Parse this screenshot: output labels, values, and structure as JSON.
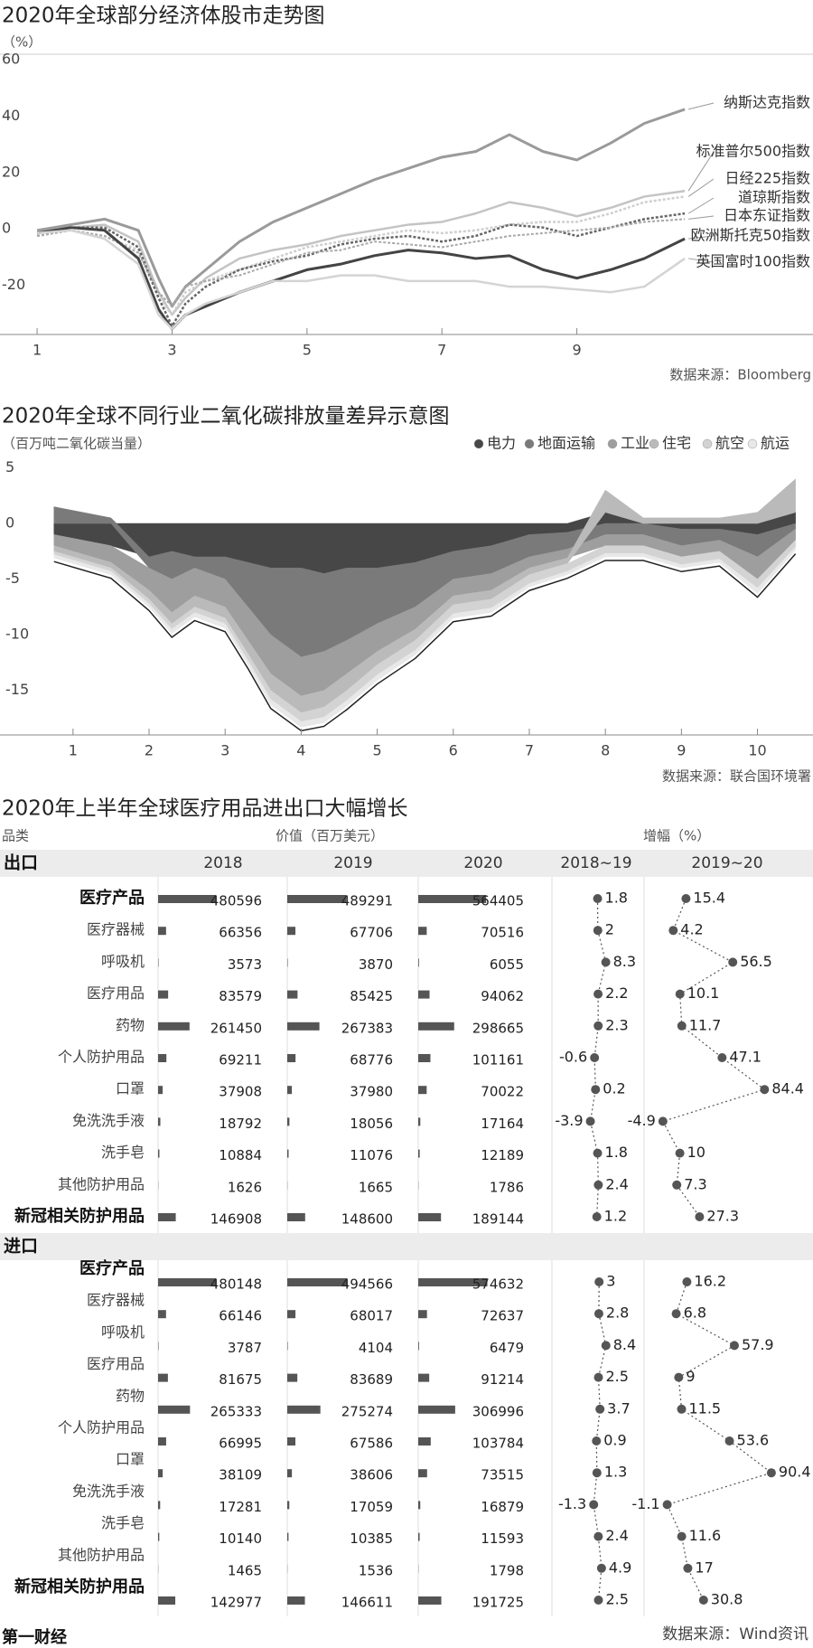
{
  "chart_data": [
    {
      "type": "line",
      "title": "2020年全球部分经济体股市走势图",
      "unit": "（%）",
      "source": "数据来源：Bloomberg",
      "x": [
        1,
        1.5,
        2,
        2.5,
        2.8,
        3,
        3.2,
        3.5,
        4,
        4.5,
        5,
        5.5,
        6,
        6.5,
        7,
        7.5,
        8,
        8.5,
        9,
        9.5,
        10,
        10.6
      ],
      "xlim": [
        0.45,
        12.5
      ],
      "xticks": [
        1,
        3,
        5,
        7,
        9
      ],
      "ylim": [
        -35,
        62
      ],
      "yticks": [
        60,
        40,
        20,
        0,
        -20
      ],
      "grid": false,
      "series": [
        {
          "name": "纳斯达克指数",
          "color": "#9a9a9a",
          "width": 3,
          "dash": false,
          "values": [
            2,
            4,
            6,
            2,
            -15,
            -25,
            -18,
            -12,
            -2,
            5,
            10,
            15,
            20,
            24,
            28,
            30,
            36,
            30,
            27,
            33,
            40,
            45
          ]
        },
        {
          "name": "标准普尔500指数",
          "color": "#c4c4c4",
          "width": 2.5,
          "dash": false,
          "values": [
            1,
            3,
            4,
            -2,
            -20,
            -28,
            -22,
            -15,
            -8,
            -5,
            -3,
            0,
            2,
            4,
            5,
            8,
            12,
            10,
            7,
            10,
            14,
            16
          ]
        },
        {
          "name": "日经225指数",
          "color": "#cfcfcf",
          "width": 2.5,
          "dash": true,
          "values": [
            0,
            2,
            0,
            -5,
            -22,
            -28,
            -20,
            -16,
            -12,
            -8,
            -4,
            -2,
            0,
            2,
            1,
            2,
            4,
            5,
            5,
            8,
            12,
            14
          ]
        },
        {
          "name": "道琼斯指数",
          "color": "#666666",
          "width": 2.5,
          "dash": true,
          "values": [
            1,
            3,
            3,
            -4,
            -22,
            -32,
            -24,
            -18,
            -12,
            -9,
            -7,
            -3,
            -1,
            0,
            -2,
            0,
            4,
            3,
            0,
            3,
            6,
            8
          ]
        },
        {
          "name": "日本东证指数",
          "color": "#a8a8a8",
          "width": 2,
          "dash": true,
          "values": [
            0,
            2,
            0,
            -6,
            -20,
            -25,
            -18,
            -16,
            -14,
            -10,
            -6,
            -5,
            -2,
            -3,
            -4,
            -2,
            0,
            1,
            2,
            3,
            5,
            6
          ]
        },
        {
          "name": "欧洲斯托克50指数",
          "color": "#444444",
          "width": 3,
          "dash": false,
          "values": [
            1,
            3,
            2,
            -8,
            -26,
            -33,
            -28,
            -25,
            -20,
            -16,
            -12,
            -10,
            -7,
            -5,
            -6,
            -8,
            -7,
            -12,
            -15,
            -12,
            -8,
            -1
          ]
        },
        {
          "name": "英国富时100指数",
          "color": "#d4d4d4",
          "width": 2.5,
          "dash": false,
          "values": [
            1,
            2,
            -1,
            -10,
            -28,
            -33,
            -28,
            -24,
            -20,
            -16,
            -16,
            -14,
            -14,
            -16,
            -16,
            -16,
            -18,
            -18,
            -19,
            -20,
            -18,
            -8
          ]
        }
      ]
    },
    {
      "type": "area",
      "title": "2020年全球不同行业二氧化碳排放量差异示意图",
      "unit": "（百万吨二氧化碳当量）",
      "source": "数据来源：联合国环境署",
      "x": [
        0.75,
        1.5,
        2,
        2.3,
        2.6,
        3,
        3.3,
        3.6,
        4,
        4.3,
        4.6,
        5,
        5.5,
        6,
        6.5,
        7,
        7.5,
        8,
        8.5,
        9,
        9.5,
        10,
        10.5
      ],
      "xlim": [
        0.04,
        10.73
      ],
      "xticks": [
        1,
        2,
        3,
        4,
        5,
        6,
        7,
        8,
        9,
        10
      ],
      "ylim": [
        -19,
        6.5
      ],
      "yticks": [
        5,
        0,
        -5,
        -10,
        -15
      ],
      "grid": false,
      "series": [
        {
          "name": "电力",
          "color": "#474747",
          "values": [
            -1,
            -2,
            -3,
            -2.5,
            -3,
            -3,
            -3.5,
            -4,
            -4,
            -4.5,
            -4,
            -4,
            -3.5,
            -2.5,
            -2,
            -1,
            -0.8,
            1,
            0,
            -0.5,
            -0.5,
            -1,
            1
          ]
        },
        {
          "name": "地面运输",
          "color": "#7a7a7a",
          "values": [
            1.5,
            0.5,
            -1,
            -2.5,
            -1,
            -2,
            -4,
            -6,
            -8,
            -7,
            -6.5,
            -5,
            -4,
            -2.5,
            -2.5,
            -2,
            -1.5,
            -1,
            -1,
            -1.5,
            -1,
            -2,
            -0.5
          ]
        },
        {
          "name": "工业",
          "color": "#9e9e9e",
          "values": [
            -1,
            -1.5,
            -2,
            -3,
            -2.5,
            -2.5,
            -3,
            -3.5,
            -3.5,
            -3.5,
            -3,
            -2.5,
            -2,
            -1.5,
            -1.5,
            -1,
            -0.8,
            -1,
            -1,
            -1,
            -1,
            -2,
            -1
          ]
        },
        {
          "name": "住宅",
          "color": "#bababa",
          "values": [
            -0.5,
            -0.5,
            -0.8,
            -1,
            -1,
            -1,
            -1.2,
            -1.5,
            -1.5,
            -1.5,
            -1.5,
            -1.2,
            -1,
            -0.8,
            -0.8,
            -0.6,
            -0.5,
            2,
            0.5,
            0.5,
            0.5,
            1,
            3
          ]
        },
        {
          "name": "航空",
          "color": "#d3d3d3",
          "values": [
            -0.3,
            -0.3,
            -0.4,
            -0.5,
            -0.5,
            -0.5,
            -0.6,
            -0.8,
            -0.8,
            -0.9,
            -0.9,
            -0.9,
            -0.9,
            -0.8,
            -0.8,
            -0.8,
            -0.7,
            -0.7,
            -0.7,
            -0.7,
            -0.7,
            -0.8,
            -0.6
          ]
        },
        {
          "name": "航运",
          "color": "#e8e8e8",
          "values": [
            -0.3,
            -0.3,
            -0.3,
            -0.4,
            -0.4,
            -0.4,
            -0.4,
            -0.5,
            -0.5,
            -0.5,
            -0.5,
            -0.5,
            -0.4,
            -0.4,
            -0.4,
            -0.3,
            -0.3,
            -0.3,
            -0.3,
            -0.3,
            -0.3,
            -0.5,
            -0.3
          ]
        }
      ]
    },
    {
      "type": "bar-table",
      "title": "2020年上半年全球医疗用品进出口大幅增长",
      "category_header": "品类",
      "value_header": "价值（百万美元）",
      "growth_header": "增幅（%）",
      "years": [
        "2018",
        "2019",
        "2020"
      ],
      "growth_periods": [
        "2018~19",
        "2019~20"
      ],
      "bar_color": "#555555",
      "sections": [
        {
          "name": "出口",
          "rows": [
            {
              "name": "医疗产品",
              "values": [
                480596,
                489291,
                564405
              ],
              "growth": [
                1.8,
                15.4
              ]
            },
            {
              "name": "医疗器械",
              "values": [
                66356,
                67706,
                70516
              ],
              "growth": [
                2,
                4.2
              ]
            },
            {
              "name": "呼吸机",
              "values": [
                3573,
                3870,
                6055
              ],
              "growth": [
                8.3,
                56.5
              ]
            },
            {
              "name": "医疗用品",
              "values": [
                83579,
                85425,
                94062
              ],
              "growth": [
                2.2,
                10.1
              ]
            },
            {
              "name": "药物",
              "values": [
                261450,
                267383,
                298665
              ],
              "growth": [
                2.3,
                11.7
              ]
            },
            {
              "name": "个人防护用品",
              "values": [
                69211,
                68776,
                101161
              ],
              "growth": [
                -0.6,
                47.1
              ]
            },
            {
              "name": "口罩",
              "values": [
                37908,
                37980,
                70022
              ],
              "growth": [
                0.2,
                84.4
              ]
            },
            {
              "name": "免洗洗手液",
              "values": [
                18792,
                18056,
                17164
              ],
              "growth": [
                -3.9,
                -4.9
              ]
            },
            {
              "name": "洗手皂",
              "values": [
                10884,
                11076,
                12189
              ],
              "growth": [
                1.8,
                10
              ]
            },
            {
              "name": "其他防护用品",
              "values": [
                1626,
                1665,
                1786
              ],
              "growth": [
                2.4,
                7.3
              ]
            },
            {
              "name": "新冠相关防护用品",
              "values": [
                146908,
                148600,
                189144
              ],
              "growth": [
                1.2,
                27.3
              ]
            }
          ]
        },
        {
          "name": "进口",
          "rows": [
            {
              "name": "医疗产品",
              "values": [
                480148,
                494566,
                574632
              ],
              "growth": [
                3,
                16.2
              ]
            },
            {
              "name": "医疗器械",
              "values": [
                66146,
                68017,
                72637
              ],
              "growth": [
                2.8,
                6.8
              ]
            },
            {
              "name": "呼吸机",
              "values": [
                3787,
                4104,
                6479
              ],
              "growth": [
                8.4,
                57.9
              ]
            },
            {
              "name": "医疗用品",
              "values": [
                81675,
                83689,
                91214
              ],
              "growth": [
                2.5,
                9
              ]
            },
            {
              "name": "药物",
              "values": [
                265333,
                275274,
                306996
              ],
              "growth": [
                3.7,
                11.5
              ]
            },
            {
              "name": "个人防护用品",
              "values": [
                66995,
                67586,
                103784
              ],
              "growth": [
                0.9,
                53.6
              ]
            },
            {
              "name": "口罩",
              "values": [
                38109,
                38606,
                73515
              ],
              "growth": [
                1.3,
                90.4
              ]
            },
            {
              "name": "免洗洗手液",
              "values": [
                17281,
                17059,
                16879
              ],
              "growth": [
                -1.3,
                -1.1
              ]
            },
            {
              "name": "洗手皂",
              "values": [
                10140,
                10385,
                11593
              ],
              "growth": [
                2.4,
                11.6
              ]
            },
            {
              "name": "其他防护用品",
              "values": [
                1465,
                1536,
                1798
              ],
              "growth": [
                4.9,
                17
              ]
            },
            {
              "name": "新冠相关防护用品",
              "values": [
                142977,
                146611,
                191725
              ],
              "growth": [
                2.5,
                30.8
              ]
            }
          ]
        }
      ],
      "source": "数据来源：Wind资讯"
    }
  ],
  "publisher": "第一财经"
}
